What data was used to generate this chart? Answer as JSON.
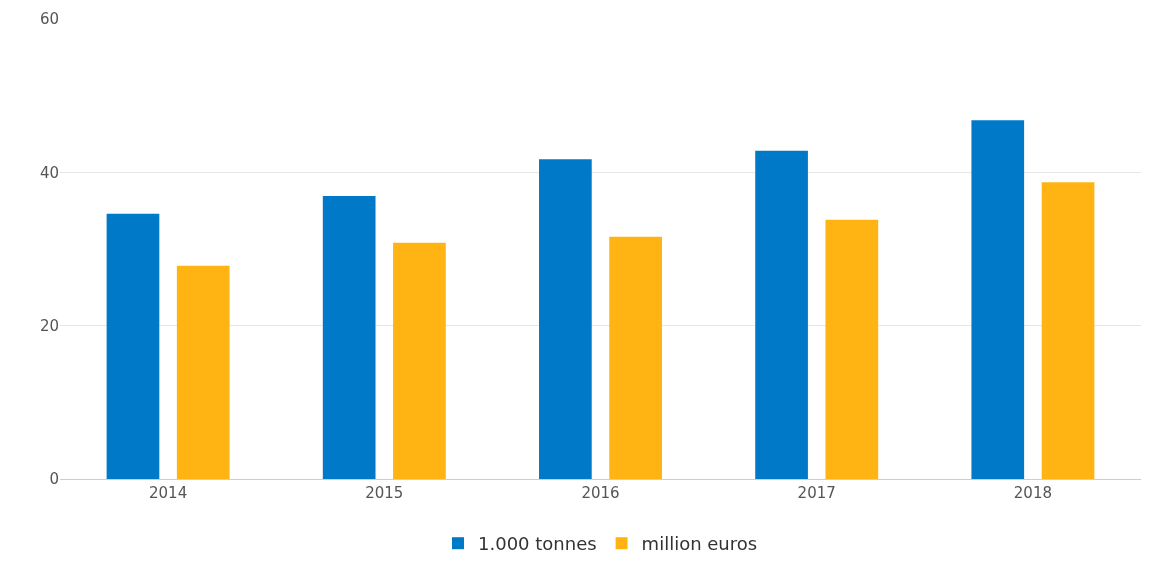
{
  "chart_data": {
    "type": "bar",
    "categories": [
      "2014",
      "2015",
      "2016",
      "2017",
      "2018"
    ],
    "series": [
      {
        "name": "1.000 tonnes",
        "color": "#0079c8",
        "values": [
          34.6,
          36.9,
          41.7,
          42.8,
          46.8
        ]
      },
      {
        "name": "million euros",
        "color": "#ffb414",
        "values": [
          27.8,
          30.8,
          31.6,
          33.8,
          38.7
        ]
      }
    ],
    "ylim": [
      0,
      60
    ],
    "yticks": [
      0,
      20,
      40,
      60
    ],
    "grid": "y",
    "legend": "bottom"
  }
}
